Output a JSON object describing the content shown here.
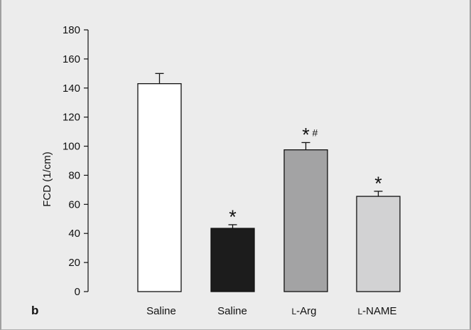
{
  "panel_label": "b",
  "chart_data": {
    "type": "bar",
    "title": "",
    "xlabel": "",
    "ylabel": "FCD (1/cm)",
    "ylim": [
      0,
      180
    ],
    "yticks": [
      0,
      20,
      40,
      60,
      80,
      100,
      120,
      140,
      160,
      180
    ],
    "grid": false,
    "legend": "none",
    "categories": [
      "Saline",
      "Saline",
      "L-Arg",
      "L-NAME"
    ],
    "category_labels": [
      {
        "prefix": "",
        "text": "Saline"
      },
      {
        "prefix": "",
        "text": "Saline"
      },
      {
        "prefix": "L",
        "text": "-Arg"
      },
      {
        "prefix": "L",
        "text": "-NAME"
      }
    ],
    "values": [
      143,
      43.5,
      97.5,
      65.5
    ],
    "errors": [
      7,
      2.5,
      5,
      3.5
    ],
    "colors": [
      "#ffffff",
      "#1c1c1c",
      "#a3a3a4",
      "#d2d2d3"
    ],
    "annotations": [
      "",
      "*",
      "*#",
      "*"
    ]
  }
}
